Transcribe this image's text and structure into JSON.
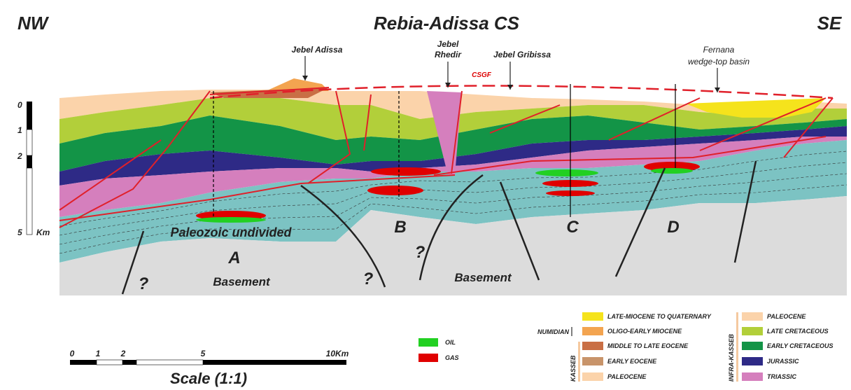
{
  "header": {
    "left": "NW",
    "title": "Rebia-Adissa CS",
    "right": "SE"
  },
  "annotations": {
    "jebel_adissa": "Jebel Adissa",
    "jebel_rhedir_1": "Jebel",
    "jebel_rhedir_2": "Rhedir",
    "csgf": "CSGF",
    "jebel_gribissa": "Jebel Gribissa",
    "fernana_1": "Fernana",
    "fernana_2": "wedge-top basin",
    "paleozoic": "Paleozoic undivided",
    "block_a": "A",
    "block_b": "B",
    "block_c": "C",
    "block_d": "D",
    "basement_1": "Basement",
    "basement_2": "Basement",
    "q1": "?",
    "q2": "?",
    "q3": "?"
  },
  "depth_scale": {
    "ticks": [
      "0",
      "1",
      "2",
      "5"
    ],
    "unit": "Km"
  },
  "scale_bar": {
    "ticks": [
      "0",
      "1",
      "2",
      "5",
      "10Km"
    ],
    "title": "Scale (1:1)"
  },
  "legend": {
    "fluids": [
      "OIL",
      "GAS"
    ],
    "top": "LATE-MIOCENE TO QUATERNARY",
    "numidian": {
      "group": "NUMIDIAN",
      "unit": "OLIGO-EARLY MIOCENE"
    },
    "kasseb": {
      "group": "KASSEB",
      "units": [
        "MIDDLE TO LATE EOCENE",
        "EARLY EOCENE",
        "PALEOCENE"
      ]
    },
    "infra_kasseb": {
      "group": "INFRA-KASSEB",
      "units": [
        "PALEOCENE",
        "LATE CRETACEOUS",
        "EARLY CRETACEOUS",
        "JURASSIC",
        "TRIASSIC"
      ]
    }
  }
}
